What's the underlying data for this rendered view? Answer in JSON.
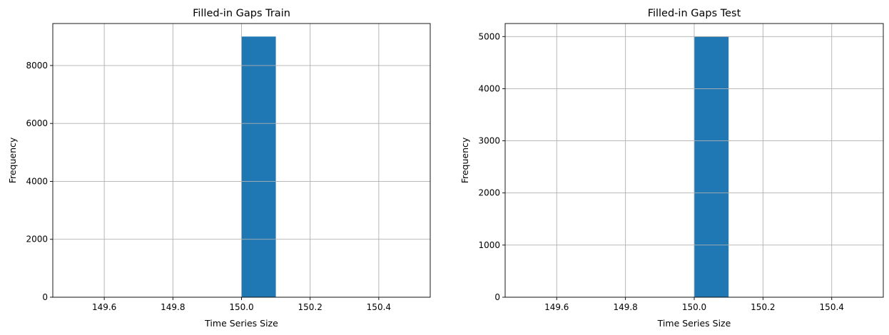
{
  "chart_data": [
    {
      "type": "bar",
      "title": "Filled-in Gaps Train",
      "xlabel": "Time Series Size",
      "ylabel": "Frequency",
      "xlim": [
        149.45,
        150.55
      ],
      "ylim": [
        0,
        9450
      ],
      "xticks": [
        "149.6",
        "149.8",
        "150.0",
        "150.2",
        "150.4"
      ],
      "xtick_values": [
        149.6,
        149.8,
        150.0,
        150.2,
        150.4
      ],
      "yticks": [
        "0",
        "2000",
        "4000",
        "6000",
        "8000"
      ],
      "ytick_values": [
        0,
        2000,
        4000,
        6000,
        8000
      ],
      "bins": [
        {
          "x0": 150.0,
          "x1": 150.1,
          "value": 9000
        }
      ],
      "grid": true,
      "bar_color": "#1f77b4"
    },
    {
      "type": "bar",
      "title": "Filled-in Gaps Test",
      "xlabel": "Time Series Size",
      "ylabel": "Frequency",
      "xlim": [
        149.45,
        150.55
      ],
      "ylim": [
        0,
        5250
      ],
      "xticks": [
        "149.6",
        "149.8",
        "150.0",
        "150.2",
        "150.4"
      ],
      "xtick_values": [
        149.6,
        149.8,
        150.0,
        150.2,
        150.4
      ],
      "yticks": [
        "0",
        "1000",
        "2000",
        "3000",
        "4000",
        "5000"
      ],
      "ytick_values": [
        0,
        1000,
        2000,
        3000,
        4000,
        5000
      ],
      "bins": [
        {
          "x0": 150.0,
          "x1": 150.1,
          "value": 5000
        }
      ],
      "grid": true,
      "bar_color": "#1f77b4"
    }
  ]
}
